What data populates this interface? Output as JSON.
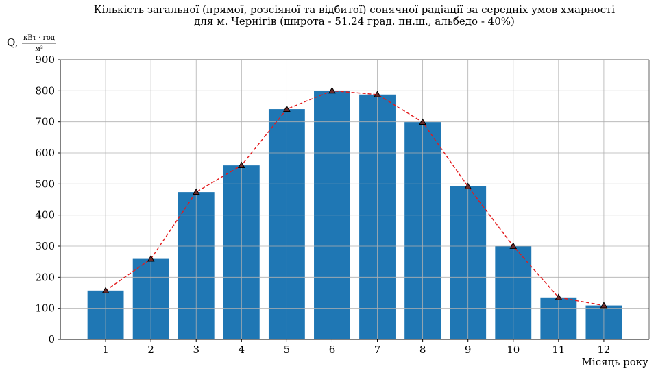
{
  "chart_data": {
    "type": "bar",
    "title_line1": "Кількість загальної (прямої, розсіяної та відбитої) сонячної радіації за середніх умов хмарності",
    "title_line2": "для м. Чернігів (широта - 51.24 град. пн.ш., альбедо - 40%)",
    "ylabel_prefix": "Q,",
    "ylabel_numerator": "кВт · год",
    "ylabel_denominator": "м²",
    "xlabel": "Місяць року",
    "categories": [
      "1",
      "2",
      "3",
      "4",
      "5",
      "6",
      "7",
      "8",
      "9",
      "10",
      "11",
      "12"
    ],
    "values": [
      157,
      259,
      474,
      560,
      741,
      800,
      788,
      699,
      492,
      300,
      135,
      109
    ],
    "ylim": [
      0,
      900
    ],
    "yticks": [
      "0",
      "100",
      "200",
      "300",
      "400",
      "500",
      "600",
      "700",
      "800",
      "900"
    ],
    "grid": true,
    "bar_color": "#1f77b4",
    "line_color": "#e31a1c",
    "line_style": "dashed",
    "marker": "triangle"
  }
}
